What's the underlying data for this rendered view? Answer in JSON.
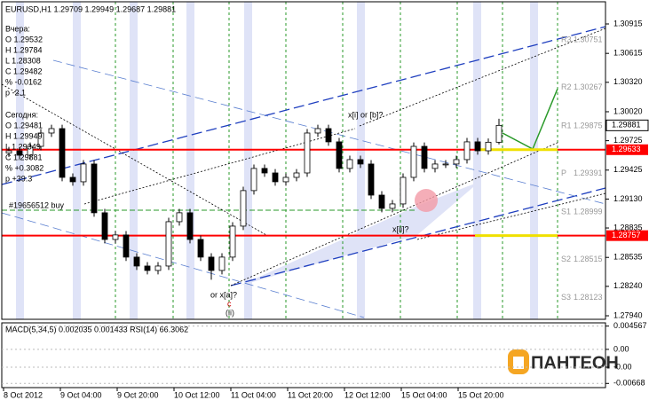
{
  "chart_data": {
    "type": "candlestick",
    "title": "EURUSD,H1  1.29709 1.29949 1.29687 1.29881",
    "info_lines": [
      "Вчера:",
      "O 1.29532",
      "H 1.29784",
      "L 1.28308",
      "C 1.29482",
      "% -0.0162",
      "p -2.1",
      "Сегодня:",
      "O 1.29481",
      "H 1.29949",
      "L 1.29349",
      "C 1.29881",
      "% +0.3082",
      "p +39.3"
    ],
    "candles": [
      [
        1.296,
        1.29662,
        1.2956,
        1.29622
      ],
      [
        1.29622,
        1.29662,
        1.29537,
        1.29577
      ],
      [
        1.29577,
        1.29707,
        1.29537,
        1.29667
      ],
      [
        1.29667,
        1.29843,
        1.29627,
        1.29803
      ],
      [
        1.29803,
        1.29888,
        1.29763,
        1.29848
      ],
      [
        1.29848,
        1.29888,
        1.29311,
        1.29351
      ],
      [
        1.29351,
        1.29391,
        1.29266,
        1.29306
      ],
      [
        1.29306,
        1.29527,
        1.29266,
        1.29487
      ],
      [
        1.29487,
        1.29527,
        1.2895,
        1.2899
      ],
      [
        1.2899,
        1.2903,
        1.28678,
        1.28718
      ],
      [
        1.28718,
        1.28804,
        1.28678,
        1.28764
      ],
      [
        1.28764,
        1.28804,
        1.28498,
        1.28538
      ],
      [
        1.28538,
        1.28578,
        1.28407,
        1.28447
      ],
      [
        1.28447,
        1.28487,
        1.28362,
        1.28402
      ],
      [
        1.28402,
        1.28487,
        1.28362,
        1.28447
      ],
      [
        1.28447,
        1.28939,
        1.28407,
        1.28899
      ],
      [
        1.28899,
        1.2903,
        1.28859,
        1.2899
      ],
      [
        1.2899,
        1.2903,
        1.28678,
        1.28718
      ],
      [
        1.28718,
        1.28758,
        1.28498,
        1.28538
      ],
      [
        1.28538,
        1.28578,
        1.28308,
        1.28402
      ],
      [
        1.28402,
        1.28578,
        1.28362,
        1.28538
      ],
      [
        1.28538,
        1.28894,
        1.28498,
        1.28854
      ],
      [
        1.28854,
        1.29256,
        1.28814,
        1.29216
      ],
      [
        1.29216,
        1.29482,
        1.29176,
        1.29442
      ],
      [
        1.29442,
        1.29482,
        1.29356,
        1.29396
      ],
      [
        1.29396,
        1.29436,
        1.29266,
        1.29306
      ],
      [
        1.29306,
        1.29391,
        1.29266,
        1.29351
      ],
      [
        1.29351,
        1.29436,
        1.29311,
        1.29396
      ],
      [
        1.29396,
        1.29843,
        1.29356,
        1.29803
      ],
      [
        1.29803,
        1.29888,
        1.29763,
        1.29848
      ],
      [
        1.29848,
        1.29888,
        1.29673,
        1.29713
      ],
      [
        1.29713,
        1.29753,
        1.29402,
        1.29442
      ],
      [
        1.29442,
        1.29572,
        1.29402,
        1.29532
      ],
      [
        1.29532,
        1.29572,
        1.29447,
        1.29487
      ],
      [
        1.29487,
        1.29527,
        1.2913,
        1.2917
      ],
      [
        1.2917,
        1.2921,
        1.28995,
        1.29035
      ],
      [
        1.29035,
        1.2912,
        1.28995,
        1.2908
      ],
      [
        1.2908,
        1.29391,
        1.2904,
        1.29351
      ],
      [
        1.29351,
        1.29707,
        1.29311,
        1.29667
      ],
      [
        1.29667,
        1.29707,
        1.29402,
        1.29442
      ],
      [
        1.29442,
        1.29527,
        1.29402,
        1.29487
      ],
      [
        1.29487,
        1.29527,
        1.29447,
        1.29487
      ],
      [
        1.29487,
        1.29572,
        1.29447,
        1.29532
      ],
      [
        1.29532,
        1.29753,
        1.29492,
        1.29713
      ],
      [
        1.29713,
        1.29753,
        1.29582,
        1.29622
      ],
      [
        1.29622,
        1.29747,
        1.29582,
        1.29709
      ],
      [
        1.29709,
        1.29949,
        1.29687,
        1.29881
      ]
    ],
    "up_color": "#ffffff",
    "down_color": "#000000",
    "ylim": [
      1.27904,
      1.31141
    ],
    "yticks": [
      1.30915,
      1.30615,
      {
        "value": 1.3032,
        "label": "1.30320"
      },
      {
        "value": 1.3002,
        "label": "1.30020"
      },
      1.29725,
      1.29425,
      {
        "value": 1.2913,
        "label": "1.29130"
      },
      1.28835,
      1.28535,
      {
        "value": 1.2824,
        "label": "1.28240"
      },
      {
        "value": 1.2794,
        "label": "1.27940"
      }
    ],
    "levels": [
      1.29633,
      1.28757
    ],
    "level_color": "#ff0000",
    "current_price": 1.29881,
    "pivots": [
      {
        "name": "R3",
        "value": 1.30751
      },
      {
        "name": "R2",
        "value": 1.30267
      },
      {
        "name": "R1",
        "value": 1.29875
      },
      {
        "name": "P",
        "value": 1.29391
      },
      {
        "name": "S1",
        "value": 1.28999
      },
      {
        "name": "S2",
        "value": 1.28515
      },
      {
        "name": "S3",
        "value": 1.28123
      }
    ],
    "annotations": [
      "x[i] or [b]?",
      "x[ii]?",
      "or x[a]?",
      "c",
      "(ii)",
      "#19656512 buy"
    ],
    "x_labels": [
      "8 Oct 2012",
      "9 Oct 04:00",
      "9 Oct 20:00",
      "10 Oct 12:00",
      "11 Oct 04:00",
      "11 Oct 20:00",
      "12 Oct 12:00",
      "15 Oct 04:00",
      "15 Oct 20:00"
    ]
  },
  "indicator": {
    "title": "MACD(5,34,5) 0.002035 0.001433  RSI(14) 66.3062",
    "ylim": [
      -0.0075,
      0.0052
    ],
    "yticks": [
      0.004567,
      {
        "value": 0,
        "label": "0.00"
      },
      {
        "value": -0.0035,
        "label": "-0.00"
      },
      -0.00668
    ]
  },
  "logo": "ПАНТЕОН"
}
